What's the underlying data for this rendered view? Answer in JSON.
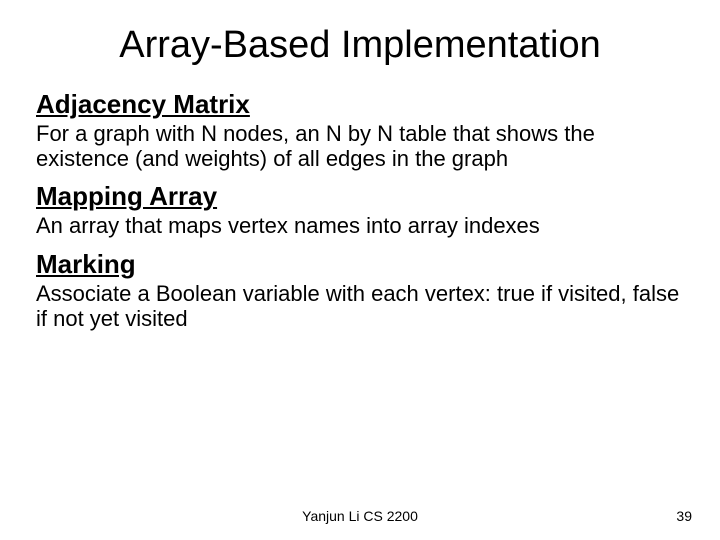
{
  "title": "Array-Based Implementation",
  "sections": [
    {
      "heading": "Adjacency Matrix",
      "body": "For a graph with N nodes, an N by N table that shows the existence (and weights) of all edges in the graph"
    },
    {
      "heading": "Mapping Array",
      "body": "An array that maps vertex names into array indexes"
    },
    {
      "heading": "Marking",
      "body": "Associate a Boolean variable with each vertex: true if visited, false if not yet visited"
    }
  ],
  "footer": {
    "center": "Yanjun Li CS 2200",
    "page": "39"
  },
  "styling": {
    "background_color": "#ffffff",
    "text_color": "#000000",
    "title_fontsize": 38,
    "subheading_fontsize": 26,
    "body_fontsize": 22,
    "footer_fontsize": 14,
    "font_family": "Arial"
  }
}
